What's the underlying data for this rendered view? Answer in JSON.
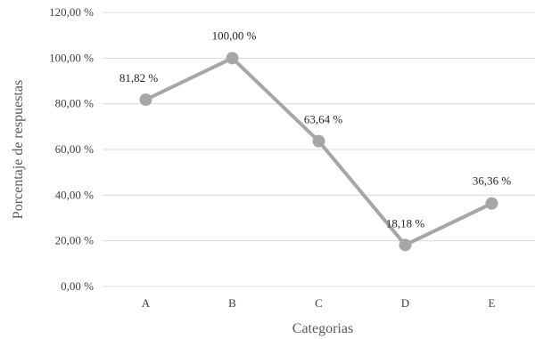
{
  "chart_data": {
    "type": "line",
    "categories": [
      "A",
      "B",
      "C",
      "D",
      "E"
    ],
    "series": [
      {
        "values": [
          81.82,
          100.0,
          63.64,
          18.18,
          36.36
        ]
      }
    ],
    "data_labels": [
      "81,82 %",
      "100,00 %",
      "63,64 %",
      "18,18 %",
      "36,36 %"
    ],
    "y_ticks": [
      0,
      20,
      40,
      60,
      80,
      100,
      120
    ],
    "y_tick_labels": [
      "0,00 %",
      "20,00 %",
      "40,00 %",
      "60,00 %",
      "80,00 %",
      "100,00 %",
      "120,00 %"
    ],
    "ylim": [
      0,
      120
    ],
    "xlabel": "Categorias",
    "ylabel": "Porcentaje de respuestas",
    "grid": true,
    "legend": "none",
    "colors": {
      "line": "#a6a6a6",
      "marker": "#a6a6a6",
      "grid": "#d9d9d9"
    }
  }
}
